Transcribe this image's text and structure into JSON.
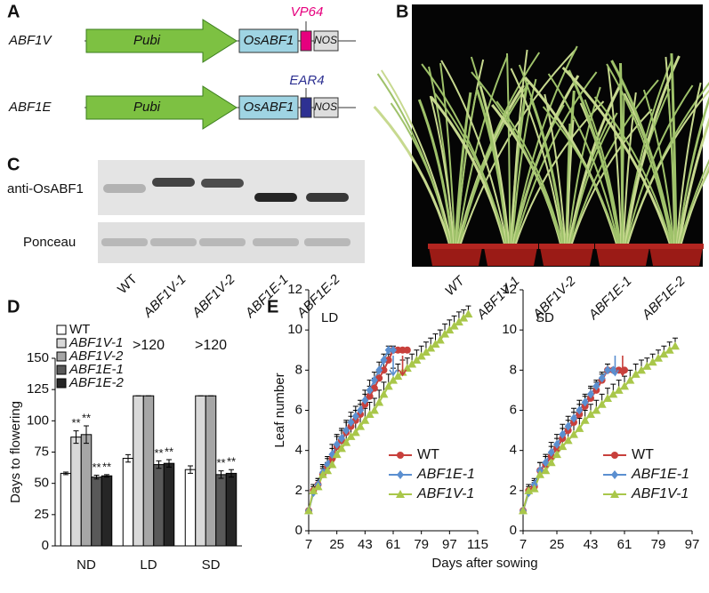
{
  "panel_labels": [
    "A",
    "B",
    "C",
    "D",
    "E"
  ],
  "panel_a": {
    "constructs": [
      {
        "name": "ABF1V",
        "promoter": "Pubi",
        "gene": "OsABF1",
        "fusion": "VP64",
        "fusion_color": "#e6007e",
        "terminator": "NOS"
      },
      {
        "name": "ABF1E",
        "promoter": "Pubi",
        "gene": "OsABF1",
        "fusion": "EAR4",
        "fusion_color": "#2e3192",
        "terminator": "NOS"
      }
    ]
  },
  "panel_b": {
    "lines": [
      "WT",
      "ABF1V-1",
      "ABF1V-2",
      "ABF1E-1",
      "ABF1E-2"
    ]
  },
  "panel_c": {
    "rows": [
      "anti-OsABF1",
      "Ponceau"
    ],
    "lanes": [
      "WT",
      "ABF1V-1",
      "ABF1V-2",
      "ABF1E-1",
      "ABF1E-2"
    ]
  },
  "chart_data": [
    {
      "type": "bar",
      "y_label": "Days to flowering",
      "categories": [
        "ND",
        "LD",
        "SD"
      ],
      "ylim": [
        0,
        150
      ],
      "yticks": [
        0,
        25,
        50,
        75,
        100,
        125,
        150
      ],
      "legend": "upper left",
      "series": [
        {
          "name": "WT",
          "color": "#ffffff",
          "values": [
            58,
            70,
            61
          ],
          "errors": [
            1,
            3,
            3
          ],
          "significance": [
            null,
            null,
            null
          ]
        },
        {
          "name": "ABF1V-1",
          "color": "#d9d9d9",
          "values": [
            87,
            120,
            120
          ],
          "errors": [
            5,
            0,
            0
          ],
          "significance": [
            "**",
            null,
            null
          ]
        },
        {
          "name": "ABF1V-2",
          "color": "#a6a6a6",
          "values": [
            89,
            120,
            120
          ],
          "errors": [
            7,
            0,
            0
          ],
          "significance": [
            "**",
            null,
            null
          ]
        },
        {
          "name": "ABF1E-1",
          "color": "#595959",
          "values": [
            55,
            65,
            57
          ],
          "errors": [
            1.5,
            3,
            3
          ],
          "significance": [
            "**",
            "**",
            "**"
          ]
        },
        {
          "name": "ABF1E-2",
          "color": "#262626",
          "values": [
            56,
            66,
            58
          ],
          "errors": [
            1,
            3,
            3
          ],
          "significance": [
            "**",
            "**",
            "**"
          ]
        }
      ],
      "annotations": [
        {
          "category": "LD",
          "text": ">120"
        },
        {
          "category": "SD",
          "text": ">120"
        }
      ]
    },
    {
      "type": "line",
      "title": "LD",
      "y_label": "Leaf number",
      "x_label": "Days after sowing",
      "xlim": [
        7,
        115
      ],
      "xticks": [
        7,
        25,
        43,
        61,
        79,
        97,
        115
      ],
      "ylim": [
        0,
        12
      ],
      "yticks": [
        0,
        2,
        4,
        6,
        8,
        10,
        12
      ],
      "legend": "lower right",
      "x": [
        7,
        10,
        13,
        16,
        19,
        22,
        25,
        28,
        31,
        34,
        37,
        40,
        43,
        46,
        49,
        52,
        55,
        58,
        61,
        64,
        67,
        70,
        73,
        76,
        79,
        82,
        85,
        88,
        91,
        94,
        97,
        100,
        103,
        106,
        109
      ],
      "series": [
        {
          "name": "WT",
          "color": "#c8403c",
          "marker": "circle",
          "values": [
            1,
            2,
            2.3,
            2.8,
            3.2,
            3.6,
            4.2,
            4.5,
            4.9,
            5.2,
            5.5,
            5.8,
            6.3,
            6.7,
            7.1,
            7.6,
            8,
            8.5,
            9,
            9,
            9,
            9,
            null,
            null,
            null,
            null,
            null,
            null,
            null,
            null,
            null,
            null,
            null,
            null,
            null
          ],
          "errors": [
            0,
            0.3,
            0.3,
            0.4,
            0.4,
            0.5,
            0.5,
            0.5,
            0.5,
            0.5,
            0.5,
            0.5,
            0.5,
            0.5,
            0.5,
            0.4,
            0.4,
            0.3,
            0.2,
            0,
            0,
            0,
            null,
            null,
            null,
            null,
            null,
            null,
            null,
            null,
            null,
            null,
            null,
            null,
            null
          ]
        },
        {
          "name": "ABF1E-1",
          "color": "#5b8fd0",
          "marker": "diamond",
          "values": [
            1,
            1.9,
            2.3,
            2.9,
            3.3,
            3.8,
            4.3,
            4.6,
            5,
            5.4,
            5.7,
            6,
            6.5,
            7,
            7.5,
            8,
            8.5,
            9,
            9,
            null,
            null,
            null,
            null,
            null,
            null,
            null,
            null,
            null,
            null,
            null,
            null,
            null,
            null,
            null,
            null
          ],
          "errors": [
            0,
            0.3,
            0.3,
            0.4,
            0.4,
            0.5,
            0.5,
            0.5,
            0.5,
            0.5,
            0.5,
            0.5,
            0.5,
            0.5,
            0.4,
            0.4,
            0.3,
            0.2,
            0,
            null,
            null,
            null,
            null,
            null,
            null,
            null,
            null,
            null,
            null,
            null,
            null,
            null,
            null,
            null,
            null
          ]
        },
        {
          "name": "ABF1V-1",
          "color": "#a9c74a",
          "marker": "triangle",
          "values": [
            1,
            2,
            2.2,
            2.8,
            3,
            3.3,
            3.8,
            4.1,
            4.4,
            4.7,
            4.9,
            5.2,
            5.5,
            5.8,
            6,
            6.4,
            6.8,
            7.2,
            7.5,
            7.7,
            7.9,
            8.1,
            8.3,
            8.5,
            8.7,
            8.9,
            9.1,
            9.3,
            9.5,
            9.8,
            10,
            10.2,
            10.4,
            10.6,
            10.8
          ],
          "errors": [
            0,
            0.3,
            0.3,
            0.3,
            0.4,
            0.4,
            0.5,
            0.5,
            0.5,
            0.5,
            0.6,
            0.6,
            0.6,
            0.6,
            0.6,
            0.6,
            0.6,
            0.6,
            0.6,
            0.6,
            0.6,
            0.5,
            0.5,
            0.5,
            0.5,
            0.5,
            0.5,
            0.5,
            0.5,
            0.5,
            0.5,
            0.5,
            0.5,
            0.4,
            0.4
          ]
        }
      ],
      "arrows": [
        {
          "color": "#5b8fd0",
          "x": 61
        },
        {
          "color": "#c8403c",
          "x": 67
        }
      ]
    },
    {
      "type": "line",
      "title": "SD",
      "xlim": [
        7,
        97
      ],
      "xticks": [
        7,
        25,
        43,
        61,
        79,
        97
      ],
      "ylim": [
        0,
        12
      ],
      "yticks": [
        0,
        2,
        4,
        6,
        8,
        10,
        12
      ],
      "legend": "lower right",
      "x": [
        7,
        10,
        13,
        16,
        19,
        22,
        25,
        28,
        31,
        34,
        37,
        40,
        43,
        46,
        49,
        52,
        55,
        58,
        61,
        64,
        67,
        70,
        73,
        76,
        79,
        82,
        85,
        88
      ],
      "series": [
        {
          "name": "WT",
          "color": "#c8403c",
          "marker": "circle",
          "values": [
            1,
            2,
            2.2,
            3,
            3.3,
            3.7,
            4.1,
            4.6,
            5,
            5.4,
            5.8,
            6.2,
            6.6,
            7,
            7.5,
            8,
            8,
            8,
            8,
            null,
            null,
            null,
            null,
            null,
            null,
            null,
            null,
            null
          ],
          "errors": [
            0,
            0.3,
            0.3,
            0.4,
            0.4,
            0.5,
            0.5,
            0.5,
            0.5,
            0.5,
            0.5,
            0.5,
            0.5,
            0.4,
            0.4,
            0.3,
            0,
            0,
            0,
            null,
            null,
            null,
            null,
            null,
            null,
            null,
            null,
            null
          ]
        },
        {
          "name": "ABF1E-1",
          "color": "#5b8fd0",
          "marker": "diamond",
          "values": [
            1,
            1.9,
            2.3,
            3,
            3.4,
            3.9,
            4.3,
            4.8,
            5.2,
            5.6,
            6,
            6.4,
            6.8,
            7.2,
            7.6,
            8,
            8,
            null,
            null,
            null,
            null,
            null,
            null,
            null,
            null,
            null,
            null,
            null
          ],
          "errors": [
            0,
            0.3,
            0.3,
            0.4,
            0.4,
            0.5,
            0.5,
            0.5,
            0.5,
            0.5,
            0.5,
            0.4,
            0.4,
            0.3,
            0.2,
            0,
            0,
            null,
            null,
            null,
            null,
            null,
            null,
            null,
            null,
            null,
            null,
            null
          ]
        },
        {
          "name": "ABF1V-1",
          "color": "#a9c74a",
          "marker": "triangle",
          "values": [
            1,
            2,
            2.1,
            2.8,
            3,
            3.4,
            3.8,
            4.2,
            4.5,
            4.8,
            5.1,
            5.5,
            5.8,
            6,
            6.3,
            6.6,
            6.8,
            7,
            7.2,
            7.5,
            7.8,
            8,
            8.2,
            8.4,
            8.6,
            8.8,
            9,
            9.2
          ],
          "errors": [
            0,
            0.3,
            0.3,
            0.3,
            0.4,
            0.4,
            0.5,
            0.5,
            0.5,
            0.5,
            0.5,
            0.5,
            0.5,
            0.5,
            0.5,
            0.5,
            0.5,
            0.5,
            0.5,
            0.5,
            0.5,
            0.5,
            0.4,
            0.4,
            0.4,
            0.4,
            0.4,
            0.4
          ]
        }
      ],
      "arrows": [
        {
          "color": "#5b8fd0",
          "x": 56
        },
        {
          "color": "#c8403c",
          "x": 60
        }
      ]
    }
  ]
}
